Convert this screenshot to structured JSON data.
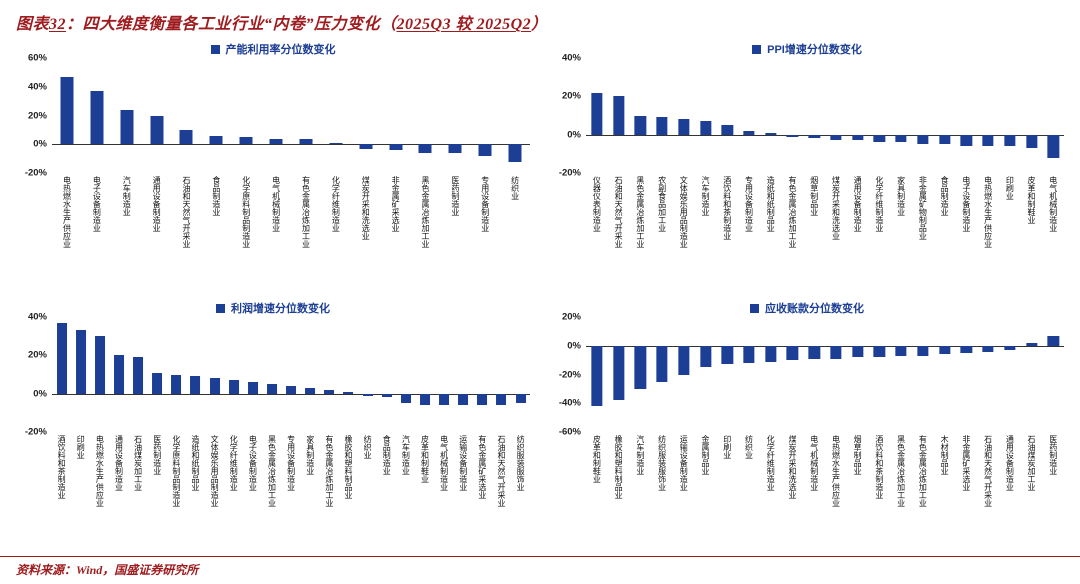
{
  "page": {
    "title_label": "图表",
    "title_number": "32",
    "title_colon": "：",
    "title_text": "四大维度衡量各工业行业“内卷”压力变化（",
    "title_period": "2025Q3 较 2025Q2",
    "title_close": "）",
    "source_label": "资料来源：",
    "source_wind": "Wind",
    "source_rest": "，国盛证券研究所"
  },
  "colors": {
    "bar": "#1C3E94",
    "title_red": "#9E1B1E",
    "axis": "#222222"
  },
  "chart_data": [
    {
      "type": "bar",
      "title": "产能利用率分位数变化",
      "unit": "%",
      "ylim": [
        -20,
        60
      ],
      "yticks": [
        60,
        40,
        20,
        0,
        -20
      ],
      "grid": false,
      "legend_position": "top-center",
      "categories": [
        "电热燃水生产供应业",
        "电子设备制造业",
        "汽车制造业",
        "通用设备制造业",
        "石油和天然气开采业",
        "食品制造业",
        "化学原料制品制造业",
        "电气机械制造业",
        "有色金属冶炼加工业",
        "化学纤维制造业",
        "煤炭开采和洗选业",
        "非金属矿采选业",
        "黑色金属冶炼加工业",
        "医药制造业",
        "专用设备制造业",
        "纺织业"
      ],
      "values": [
        47,
        37,
        24,
        20,
        10,
        6,
        5,
        4,
        4,
        1,
        -3,
        -4,
        -6,
        -6,
        -8,
        -12
      ]
    },
    {
      "type": "bar",
      "title": "PPI增速分位数变化",
      "unit": "%",
      "ylim": [
        -20,
        40
      ],
      "yticks": [
        40,
        20,
        0,
        -20
      ],
      "grid": false,
      "legend_position": "top-center",
      "categories": [
        "仪器仪表制造业",
        "石油和天然气开采业",
        "黑色金属冶炼加工业",
        "农副食品加工业",
        "文体娱乐用品制造业",
        "汽车制造业",
        "酒饮料和茶制造业",
        "专用设备制造业",
        "造纸和纸制品业",
        "有色金属冶炼加工业",
        "烟草制品业",
        "煤炭开采和洗选业",
        "通用设备制造业",
        "化学纤维制造业",
        "家具制造业",
        "非金属矿物制品业",
        "食品制造业",
        "电子设备制造业",
        "电热燃水生产供应业",
        "印刷业",
        "皮革和制鞋业",
        "电气机械制造业"
      ],
      "values": [
        22,
        20,
        10,
        9,
        8,
        7,
        5,
        2,
        1,
        -1,
        -2,
        -3,
        -3,
        -4,
        -4,
        -5,
        -5,
        -6,
        -6,
        -6,
        -7,
        -12
      ]
    },
    {
      "type": "bar",
      "title": "利润增速分位数变化",
      "unit": "%",
      "ylim": [
        -20,
        40
      ],
      "yticks": [
        40,
        20,
        0,
        -20
      ],
      "grid": false,
      "legend_position": "top-center",
      "categories": [
        "酒饮料和茶制造业",
        "印刷业",
        "电热燃水生产供应业",
        "通用设备制造业",
        "石油煤炭加工业",
        "医药制造业",
        "化学原料制品制造业",
        "造纸和纸制品业",
        "文体娱乐用品制造业",
        "化学纤维制造业",
        "电子设备制造业",
        "黑色金属冶炼加工业",
        "专用设备制造业",
        "家具制造业",
        "有色金属冶炼加工业",
        "橡胶和塑料制品业",
        "纺织业",
        "食品制造业",
        "汽车制造业",
        "皮革和制鞋业",
        "电气机械制造业",
        "运输设备制造业",
        "有色金属矿采选业",
        "石油和天然气开采业",
        "纺织服装服饰业"
      ],
      "values": [
        37,
        33,
        30,
        20,
        19,
        11,
        10,
        9,
        8,
        7,
        6,
        5,
        4,
        3,
        2,
        1,
        -1,
        -2,
        -5,
        -6,
        -6,
        -6,
        -6,
        -6,
        -5
      ]
    },
    {
      "type": "bar",
      "title": "应收账款分位数变化",
      "unit": "%",
      "ylim": [
        -60,
        20
      ],
      "yticks": [
        20,
        0,
        -20,
        -40,
        -60
      ],
      "grid": false,
      "legend_position": "top-center",
      "categories": [
        "皮革和制鞋业",
        "橡胶和塑料制品业",
        "汽车制造业",
        "纺织服装服饰业",
        "运输设备制造业",
        "金属制品业",
        "印刷业",
        "纺织业",
        "化学纤维制造业",
        "煤炭开采和洗选业",
        "电气机械制造业",
        "电热燃水生产供应业",
        "烟草制品业",
        "酒饮料和茶制造业",
        "黑色金属冶炼加工业",
        "有色金属冶炼加工业",
        "木材制品业",
        "非金属矿采选业",
        "石油和天然气开采业",
        "通用设备制造业",
        "石油煤炭加工业",
        "医药制造业"
      ],
      "values": [
        -42,
        -38,
        -30,
        -25,
        -20,
        -15,
        -13,
        -12,
        -11,
        -10,
        -9,
        -9,
        -8,
        -8,
        -7,
        -7,
        -6,
        -5,
        -4,
        -3,
        2,
        7
      ]
    }
  ]
}
